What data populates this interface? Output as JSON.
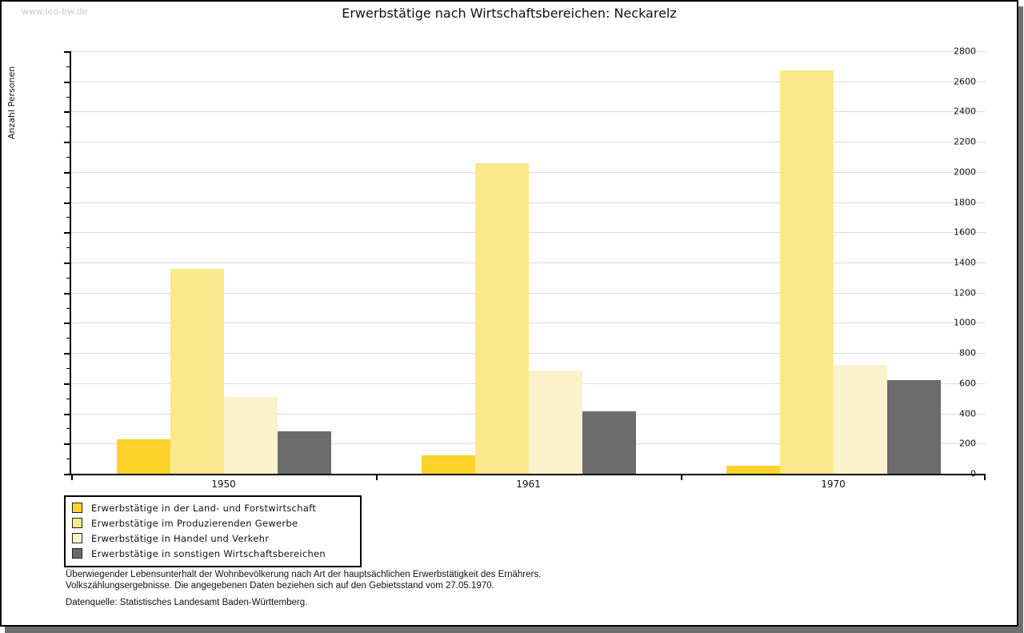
{
  "page": {
    "watermark": "www.leo-bw.de",
    "title": "Erwerbstätige nach Wirtschaftsbereichen: Neckarelz"
  },
  "chart_data": {
    "type": "bar",
    "title": "Erwerbstätige nach Wirtschaftsbereichen: Neckarelz",
    "xlabel": "",
    "ylabel": "Anzahl Personen",
    "ylim": [
      0,
      2800
    ],
    "y_major_step": 200,
    "y_minor_step": 100,
    "grid": true,
    "legend_position": "bottom-left",
    "categories": [
      "1950",
      "1961",
      "1970"
    ],
    "series": [
      {
        "name": "Erwerbstätige in der Land- und Forstwirtschaft",
        "color": "#fbd32b",
        "values": [
          230,
          120,
          55
        ]
      },
      {
        "name": "Erwerbstätige im Produzierenden Gewerbe",
        "color": "#fce88c",
        "values": [
          1360,
          2060,
          2675
        ]
      },
      {
        "name": "Erwerbstätige in Handel und Verkehr",
        "color": "#fbf2cd",
        "values": [
          510,
          685,
          720
        ]
      },
      {
        "name": "Erwerbstätige in sonstigen Wirtschaftsbereichen",
        "color": "#6c6c6c",
        "values": [
          280,
          415,
          620
        ]
      }
    ],
    "colors": {
      "gridline": "#dcdcdc",
      "axis": "#000000",
      "watermark": "#c9c9c9"
    }
  },
  "footnotes": {
    "line1": "Überwiegender Lebensunterhalt der Wohnbevölkerung nach Art der hauptsächlichen Erwerbstätigkeit des Ernährers.",
    "line2": "Volkszählungsergebnisse. Die angegebenen Daten beziehen sich auf den Gebietsstand vom 27.05.1970.",
    "source": "Datenquelle: Statistisches Landesamt Baden-Württemberg."
  }
}
